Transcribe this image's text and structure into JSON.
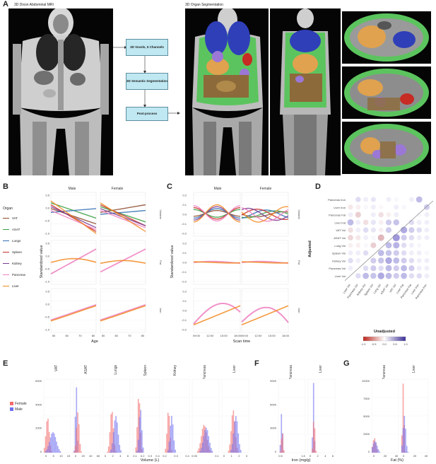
{
  "panels": {
    "a": "A",
    "b": "B",
    "c": "C",
    "d": "D",
    "e": "E",
    "f": "F",
    "g": "G"
  },
  "panel_a": {
    "title_left": "3D Dixon Abdominal MRI",
    "title_right": "3D Organ Segmentation",
    "flow": [
      "3D Voxels, 5 Channels",
      "3D Semantic Segmentation",
      "Post-process"
    ]
  },
  "colors": {
    "VAT": "#8c4a2b",
    "ASAT": "#3a9e43",
    "Lungs": "#2f6db0",
    "Spleen": "#c62b24",
    "Kidney": "#7a3c94",
    "Pancreas": "#ef7fc0",
    "Liver": "#f28a20",
    "female_bar": "#f46b6b",
    "male_bar": "#6f6ff0"
  },
  "panel_b": {
    "legend_title": "Organ",
    "legend": [
      "VAT",
      "ASAT",
      "Lungs",
      "Spleen",
      "Kidney",
      "Pancreas",
      "Liver"
    ],
    "facet_cols": [
      "Male",
      "Female"
    ],
    "facet_rows": [
      "Volume",
      "Fat",
      "Iron"
    ],
    "ylabel": "Standardized value",
    "xlabel": "Age",
    "xticks": [
      "50",
      "60",
      "70",
      "80"
    ],
    "yticks": [
      "0.5",
      "0.0",
      "-0.5",
      "-1.0"
    ]
  },
  "panel_c": {
    "facet_cols": [
      "Male",
      "Female"
    ],
    "facet_rows": [
      "Volume",
      "Fat",
      "Iron"
    ],
    "ylabel": "Standardized value",
    "xlabel": "Scan time",
    "xticks": [
      "09:00",
      "12:00",
      "15:00",
      "18:00"
    ],
    "yticks": [
      "0.2",
      "0.1",
      "0.0",
      "-0.1",
      "-0.2"
    ]
  },
  "panel_d": {
    "row_labels": [
      "Pancreas Iron",
      "Liver Iron",
      "Pancreas Fat",
      "Liver Fat",
      "VAT Vol",
      "ASAT Vol",
      "Lung Vol",
      "Spleen Vol",
      "Kidney Vol",
      "Pancreas Vol",
      "Liver Vol"
    ],
    "col_labels": [
      "Liver Vol",
      "Pancreas Vol",
      "Kidney Vol",
      "Spleen Vol",
      "Lung Vol",
      "ASAT Vol",
      "VAT Vol",
      "Liver Fat",
      "Pancreas Fat",
      "Liver Iron",
      "Pancreas Iron"
    ],
    "adjusted_label": "Adjusted",
    "unadjusted_label": "Unadjusted",
    "colorbar_ticks": [
      "-1.0",
      "-0.5",
      "0.0",
      "0.5",
      "1.0"
    ]
  },
  "panel_e": {
    "organs": [
      "VAT",
      "ASAT",
      "Lungs",
      "Spleen",
      "Kidney",
      "Pancreas",
      "Liver"
    ],
    "legend": [
      "Female",
      "Male"
    ],
    "yticks": [
      "6000",
      "4000",
      "2000",
      "0"
    ],
    "xticks": [
      [
        "0",
        "5",
        "10",
        "15"
      ],
      [
        "0",
        "20",
        "40",
        "60"
      ],
      [
        "0",
        "2",
        "4",
        "6"
      ],
      [
        "0.1",
        "0.2",
        "0.3",
        "0.4"
      ],
      [
        "0.2",
        "0.3",
        "0.4"
      ],
      [
        "0.05",
        "0.1"
      ],
      [
        "0",
        "1",
        "2",
        "3"
      ]
    ],
    "xlabel": "Volume (L)"
  },
  "panel_f": {
    "organs": [
      "Pancreas",
      "Liver"
    ],
    "yticks": [
      "9000",
      "6000",
      "3000",
      "0"
    ],
    "xticks": [
      [
        "0.5",
        "1.5"
      ],
      [
        "0",
        "2",
        "4",
        "6"
      ]
    ],
    "xlabel": "Iron (mg/g)"
  },
  "panel_g": {
    "organs": [
      "Pancreas",
      "Liver"
    ],
    "yticks": [
      "10000",
      "7500",
      "5000",
      "2500",
      "0"
    ],
    "xticks": [
      [
        "0",
        "20",
        "40"
      ],
      [
        "0",
        "20",
        "40"
      ]
    ],
    "xlabel": "Fat (%)"
  }
}
